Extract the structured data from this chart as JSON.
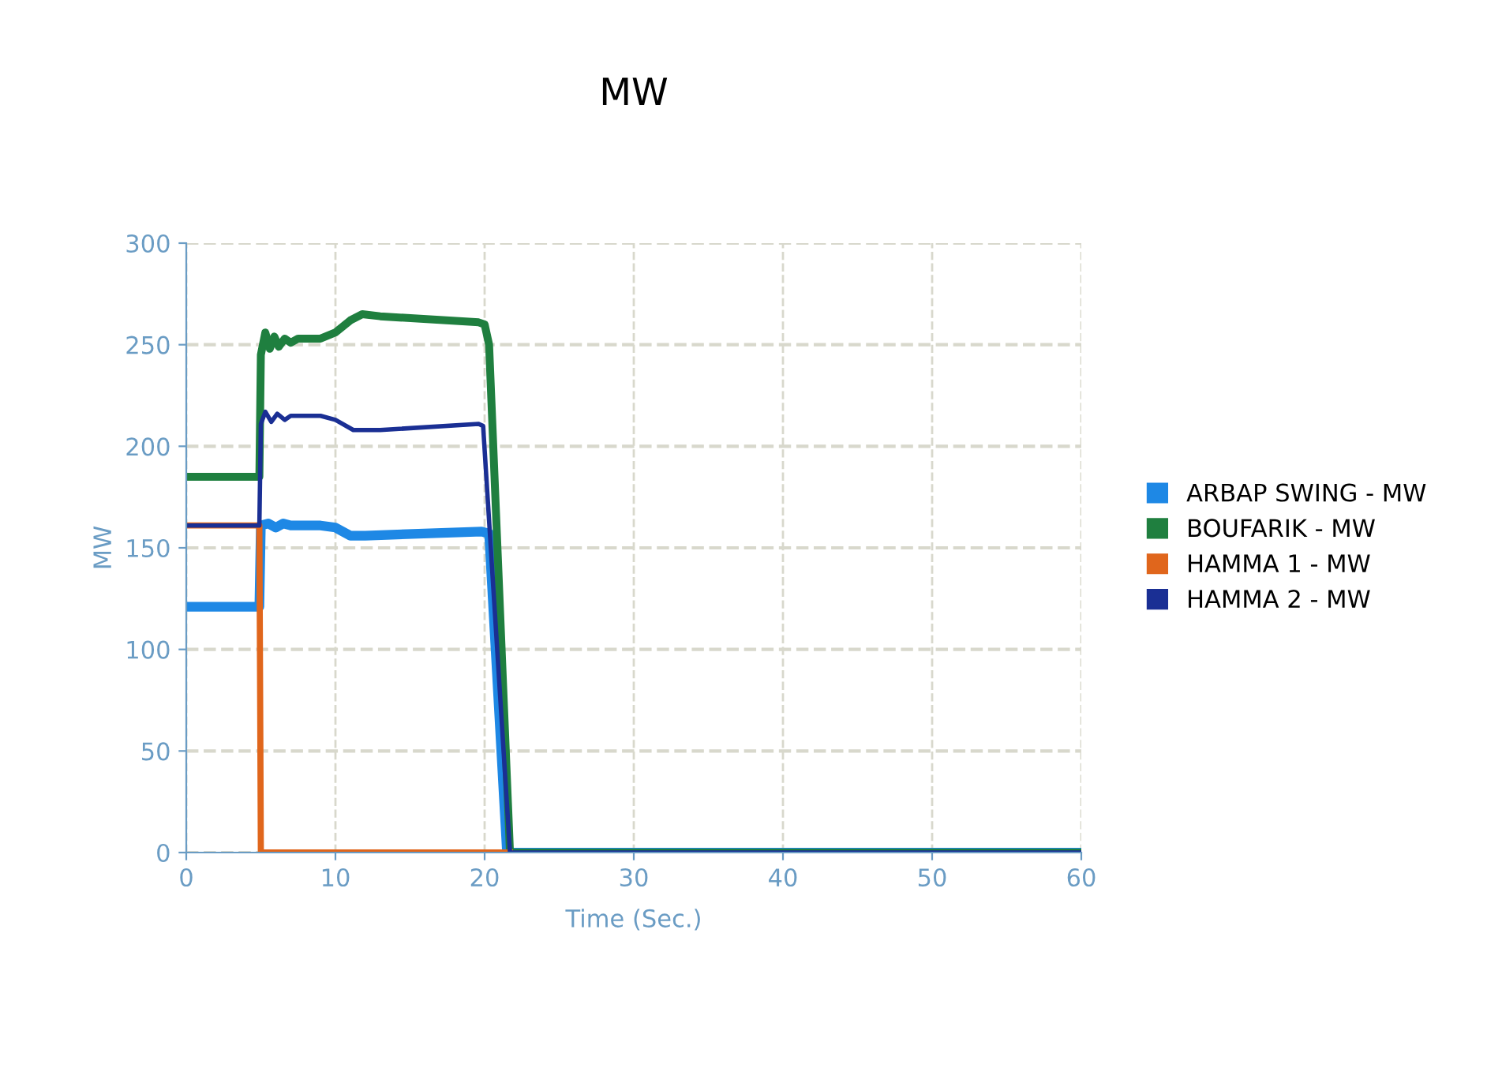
{
  "chart_data": {
    "type": "line",
    "title": "MW",
    "xlabel": "Time (Sec.)",
    "ylabel": "MW",
    "xlim": [
      0,
      60
    ],
    "xticks": [
      0,
      10,
      20,
      30,
      40,
      50,
      60
    ],
    "ylim": [
      0,
      300
    ],
    "yticks": [
      0,
      50,
      100,
      150,
      200,
      250,
      300
    ],
    "grid": true,
    "legend": "right",
    "marker": "none",
    "line_style": "solid",
    "series": [
      {
        "name": "ARBAP SWING - MW",
        "color": "#1e88e5",
        "x": [
          0,
          4.9,
          5.0,
          5.5,
          6.0,
          6.5,
          7.0,
          9.0,
          10.0,
          11.0,
          12.0,
          19.8,
          20.3,
          21.5,
          60
        ],
        "values": [
          121,
          121,
          161,
          162,
          160,
          162,
          161,
          161,
          160,
          156,
          156,
          158,
          157,
          0,
          0
        ]
      },
      {
        "name": "BOUFARIK - MW",
        "color": "#1f7f3f",
        "x": [
          0,
          4.9,
          5.0,
          5.3,
          5.6,
          5.9,
          6.2,
          6.6,
          7.0,
          7.5,
          9.0,
          10.0,
          11.0,
          11.8,
          13.0,
          19.6,
          20.0,
          20.3,
          21.7,
          60
        ],
        "values": [
          185,
          185,
          245,
          256,
          248,
          254,
          249,
          253,
          251,
          253,
          253,
          256,
          262,
          265,
          264,
          261,
          260,
          250,
          0,
          0
        ]
      },
      {
        "name": "HAMMA 1 - MW",
        "color": "#e0661c",
        "x": [
          0,
          4.9,
          5.0,
          21.7
        ],
        "values": [
          161,
          161,
          0,
          0
        ]
      },
      {
        "name": "HAMMA 2 - MW",
        "color": "#1a2f94",
        "x": [
          0,
          4.9,
          5.0,
          5.3,
          5.7,
          6.1,
          6.6,
          7.0,
          9.0,
          10.0,
          11.2,
          13.0,
          19.6,
          19.9,
          21.7,
          60
        ],
        "values": [
          161,
          161,
          211,
          217,
          212,
          216,
          213,
          215,
          215,
          213,
          208,
          208,
          211,
          210,
          0,
          0
        ]
      }
    ]
  }
}
